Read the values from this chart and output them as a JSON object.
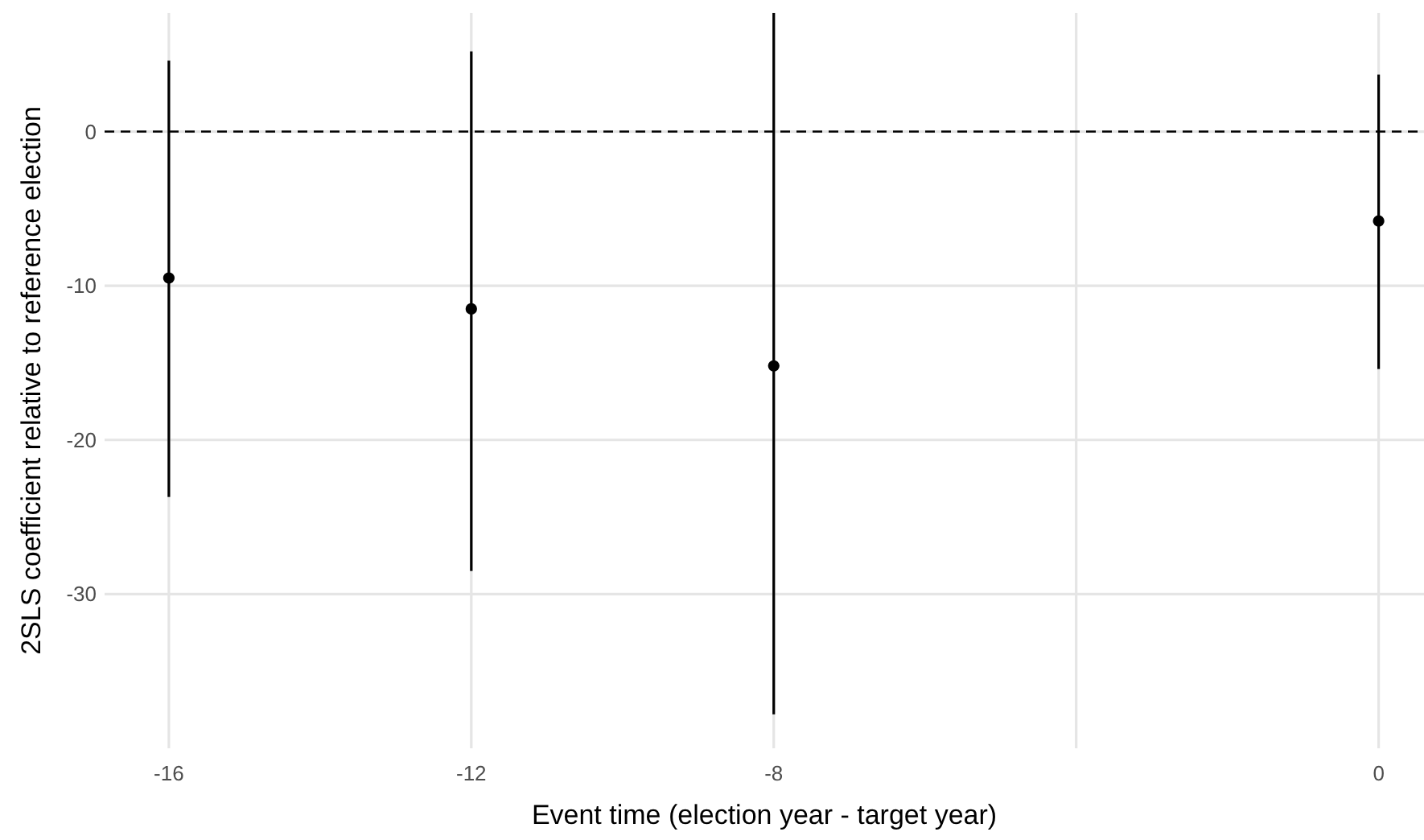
{
  "chart_data": {
    "type": "scatter",
    "xlabel": "Event time (election year - target year)",
    "ylabel": "2SLS coefficient relative to reference election",
    "x": [
      -16,
      -12,
      -8,
      0
    ],
    "values": [
      -9.5,
      -11.5,
      -15.2,
      -5.8
    ],
    "errors": [
      [
        -23.7,
        4.6
      ],
      [
        -28.5,
        5.2
      ],
      [
        -37.8,
        7.7
      ],
      [
        -15.4,
        3.7
      ]
    ],
    "color": "#000000",
    "marker": "circle",
    "xlim": [
      -16.85,
      0.6
    ],
    "xticks": [
      -16,
      -12,
      -8,
      {
        "value": -4,
        "label": null
      },
      0
    ],
    "ylim": [
      -40,
      7.7
    ],
    "yticks": [
      0,
      -10,
      -20,
      -30
    ],
    "grid": true,
    "ref_lines": [
      {
        "axis": "y",
        "value": 0,
        "line_style": "dashed",
        "color": "#000000"
      }
    ]
  }
}
